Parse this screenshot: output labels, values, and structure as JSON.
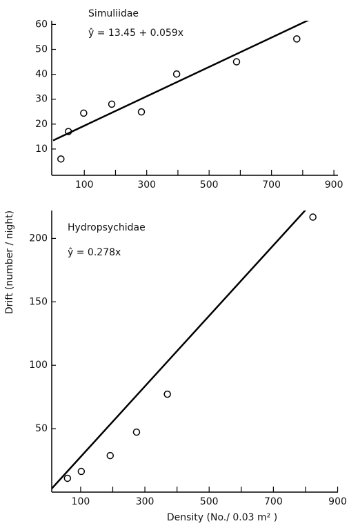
{
  "chart_data": [
    {
      "type": "scatter",
      "title": "Simuliidae",
      "annotation": "ŷ = 13.45 + 0.059x",
      "ylabel": "Drift (number / night)",
      "series": [
        {
          "name": "observed",
          "color": "#000000",
          "x": [
            25,
            49,
            98,
            188,
            283,
            396,
            588,
            781
          ],
          "values": [
            6,
            17,
            24.4,
            28,
            24.9,
            40.1,
            45,
            54.2
          ]
        },
        {
          "name": "fit",
          "color": "#000000",
          "x": [
            0,
            880
          ],
          "values": [
            13.45,
            65.37
          ]
        }
      ],
      "xlim": [
        0,
        913
      ],
      "ylim": [
        0,
        61.5
      ],
      "xticks": [
        100,
        300,
        500,
        700,
        900
      ],
      "xminor_ticks": [
        200,
        400,
        600,
        800
      ],
      "yticks": [
        10,
        20,
        30,
        40,
        50,
        60
      ]
    },
    {
      "type": "scatter",
      "title": "Hydropsychidae",
      "annotation": "ŷ = 0.278x",
      "xlabel": "Density (No./ 0.03 m² )",
      "series": [
        {
          "name": "observed",
          "color": "#000000",
          "x": [
            59,
            102,
            192,
            274,
            370,
            823
          ],
          "values": [
            10.9,
            16.3,
            28.8,
            47.3,
            77.2,
            216.8
          ]
        },
        {
          "name": "fit",
          "color": "#000000",
          "x": [
            0,
            800
          ],
          "values": [
            0,
            222.4
          ]
        }
      ],
      "xlim": [
        10,
        901
      ],
      "ylim": [
        0,
        222
      ],
      "xticks": [
        100,
        300,
        500,
        700,
        900
      ],
      "xminor_ticks": [
        200,
        400,
        600,
        800
      ],
      "yticks": [
        50,
        100,
        150,
        200
      ]
    }
  ]
}
